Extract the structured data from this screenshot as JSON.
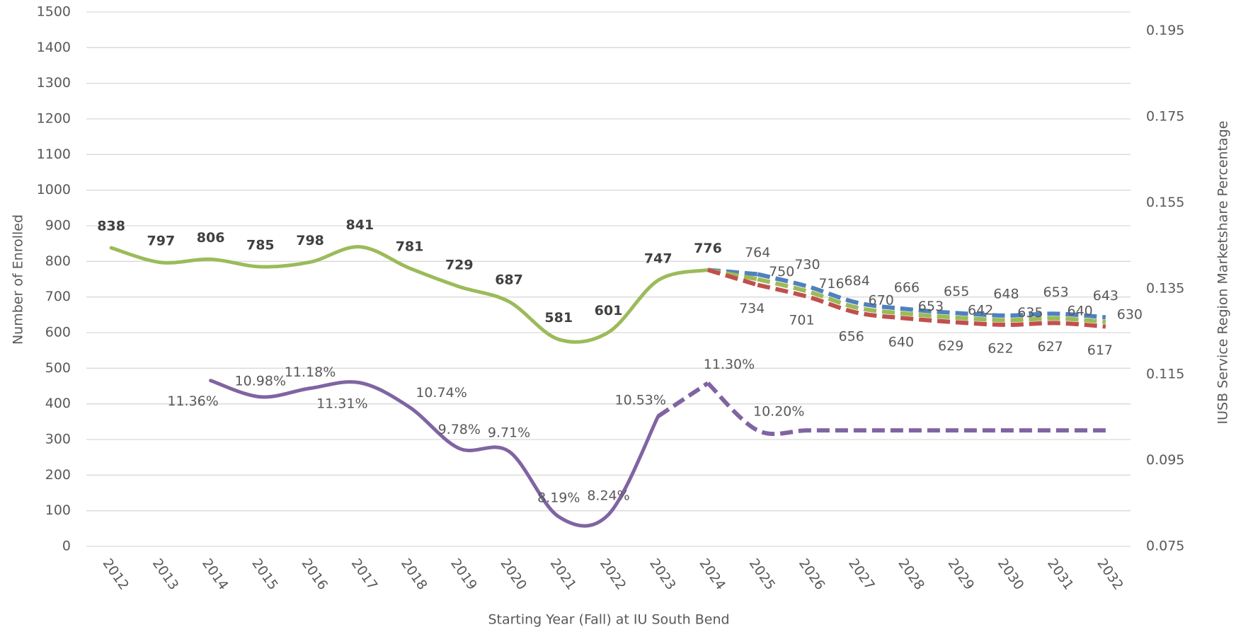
{
  "chart_data": {
    "type": "line",
    "x_label": "Starting Year (Fall) at IU South Bend",
    "y_label": "Number of Enrolled",
    "y2_label": "IUSB Service Region Marketshare Percentage",
    "categories": [
      "2012",
      "2013",
      "2014",
      "2015",
      "2016",
      "2017",
      "2018",
      "2019",
      "2020",
      "2021",
      "2022",
      "2023",
      "2024",
      "2025",
      "2026",
      "2027",
      "2028",
      "2029",
      "2030",
      "2031",
      "2032"
    ],
    "ylim": [
      0,
      1500
    ],
    "yticks": [
      0,
      100,
      200,
      300,
      400,
      500,
      600,
      700,
      800,
      900,
      1000,
      1100,
      1200,
      1300,
      1400,
      1500
    ],
    "y2lim": [
      0.075,
      0.1994
    ],
    "y2ticks": [
      0.075,
      0.095,
      0.115,
      0.135,
      0.155,
      0.175,
      0.195
    ],
    "grid": true,
    "series": [
      {
        "color": "#9bbb59",
        "values": [
          838,
          797,
          806,
          785,
          798,
          841,
          781,
          729,
          687,
          581,
          601,
          747,
          776,
          null,
          null,
          null,
          null,
          null,
          null,
          null,
          null
        ]
      },
      {
        "color": "#4f81bd",
        "dashed": true,
        "values": [
          null,
          null,
          null,
          null,
          null,
          null,
          null,
          null,
          null,
          null,
          null,
          null,
          null,
          764,
          730,
          684,
          666,
          655,
          648,
          653,
          643
        ]
      },
      {
        "color": "#9bbb59",
        "dashed": true,
        "values": [
          null,
          null,
          null,
          null,
          null,
          null,
          null,
          null,
          null,
          null,
          null,
          null,
          null,
          750,
          716,
          670,
          653,
          642,
          635,
          640,
          630
        ]
      },
      {
        "color": "#c0504d",
        "dashed": true,
        "values": [
          null,
          null,
          null,
          null,
          null,
          null,
          null,
          null,
          null,
          null,
          null,
          null,
          null,
          734,
          701,
          656,
          640,
          629,
          622,
          627,
          617
        ]
      },
      {
        "color": "#8064a2",
        "axis": "y2",
        "values": [
          null,
          null,
          0.1136,
          0.1098,
          0.1118,
          0.1131,
          0.1074,
          0.0978,
          0.0971,
          0.0819,
          0.0824,
          0.1053,
          null,
          null,
          null,
          null,
          null,
          null,
          null,
          null,
          null
        ],
        "value_labels": [
          null,
          null,
          "11.36%",
          "10.98%",
          "11.18%",
          "11.31%",
          "10.74%",
          "9.78%",
          "9.71%",
          "8.19%",
          "8.24%",
          "10.53%",
          null,
          null,
          null,
          null,
          null,
          null,
          null,
          null,
          null
        ]
      },
      {
        "color": "#8064a2",
        "axis": "y2",
        "dashed": true,
        "values": [
          null,
          null,
          null,
          null,
          null,
          null,
          null,
          null,
          null,
          null,
          null,
          null,
          0.113,
          0.102,
          0.102,
          0.102,
          0.102,
          0.102,
          0.102,
          0.102,
          0.102
        ],
        "value_labels": [
          null,
          null,
          null,
          null,
          null,
          null,
          null,
          null,
          null,
          null,
          null,
          null,
          "11.30%",
          "10.20%",
          null,
          null,
          null,
          null,
          null,
          null,
          null
        ]
      }
    ]
  }
}
